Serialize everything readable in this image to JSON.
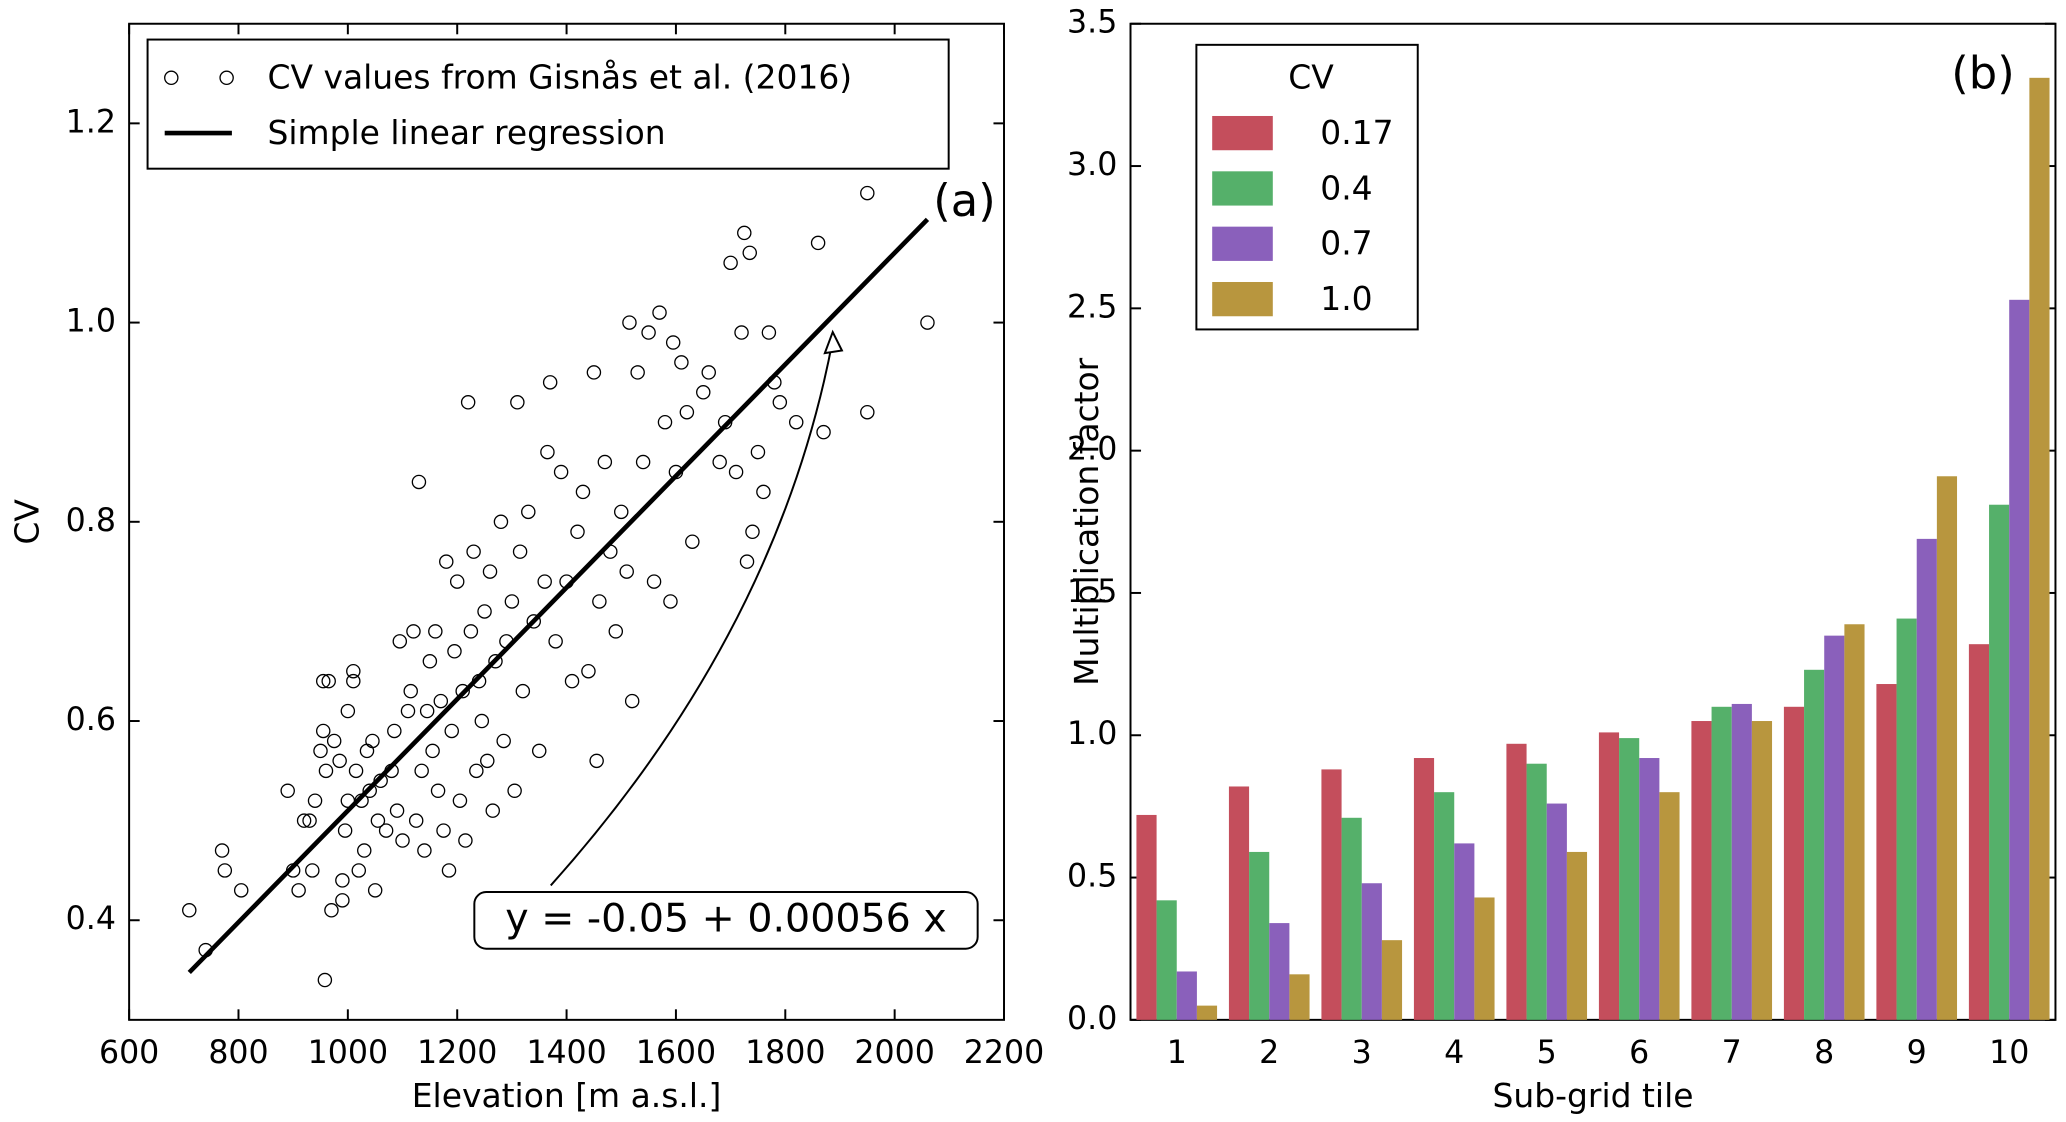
{
  "chart_data": [
    {
      "type": "scatter",
      "panel_label": "(a)",
      "annotation": "y = -0.05 + 0.00056 x",
      "x_label": "Elevation [m a.s.l.]",
      "y_label": "CV",
      "xlim": [
        600,
        2200
      ],
      "xticks": [
        600,
        800,
        1000,
        1200,
        1400,
        1600,
        1800,
        2000,
        2200
      ],
      "ylim": [
        0.3,
        1.3
      ],
      "yticks": [
        0.4,
        0.6,
        0.8,
        {
          "value": 1.0,
          "label": "1.0"
        },
        1.2
      ],
      "series": [
        {
          "name": "CV values from Gisnås et al. (2016)",
          "kind": "scatter",
          "color": "#000000",
          "x": [
            710,
            740,
            770,
            775,
            805,
            890,
            900,
            910,
            920,
            930,
            935,
            940,
            950,
            955,
            955,
            958,
            960,
            965,
            970,
            975,
            985,
            990,
            990,
            995,
            1000,
            1000,
            1010,
            1010,
            1015,
            1020,
            1025,
            1030,
            1035,
            1040,
            1045,
            1050,
            1055,
            1060,
            1070,
            1080,
            1085,
            1090,
            1095,
            1100,
            1110,
            1115,
            1120,
            1125,
            1130,
            1135,
            1140,
            1145,
            1150,
            1155,
            1160,
            1165,
            1170,
            1175,
            1180,
            1185,
            1190,
            1195,
            1200,
            1205,
            1210,
            1215,
            1220,
            1225,
            1230,
            1235,
            1240,
            1245,
            1250,
            1255,
            1260,
            1265,
            1270,
            1280,
            1285,
            1290,
            1300,
            1305,
            1310,
            1315,
            1320,
            1330,
            1340,
            1350,
            1360,
            1365,
            1370,
            1380,
            1390,
            1400,
            1410,
            1420,
            1430,
            1440,
            1450,
            1455,
            1460,
            1470,
            1480,
            1490,
            1500,
            1510,
            1515,
            1520,
            1530,
            1540,
            1550,
            1560,
            1570,
            1580,
            1590,
            1595,
            1600,
            1610,
            1620,
            1630,
            1650,
            1660,
            1680,
            1690,
            1700,
            1710,
            1720,
            1725,
            1730,
            1735,
            1740,
            1750,
            1760,
            1770,
            1780,
            1790,
            1820,
            1860,
            1870,
            1950,
            1950,
            2060
          ],
          "values": [
            0.41,
            0.37,
            0.47,
            0.45,
            0.43,
            0.53,
            0.45,
            0.43,
            0.5,
            0.5,
            0.45,
            0.52,
            0.57,
            0.59,
            0.64,
            0.34,
            0.55,
            0.64,
            0.41,
            0.58,
            0.56,
            0.42,
            0.44,
            0.49,
            0.52,
            0.61,
            0.65,
            0.64,
            0.55,
            0.45,
            0.52,
            0.47,
            0.57,
            0.53,
            0.58,
            0.43,
            0.5,
            0.54,
            0.49,
            0.55,
            0.59,
            0.51,
            0.68,
            0.48,
            0.61,
            0.63,
            0.69,
            0.5,
            0.84,
            0.55,
            0.47,
            0.61,
            0.66,
            0.57,
            0.69,
            0.53,
            0.62,
            0.49,
            0.76,
            0.45,
            0.59,
            0.67,
            0.74,
            0.52,
            0.63,
            0.48,
            0.92,
            0.69,
            0.77,
            0.55,
            0.64,
            0.6,
            0.71,
            0.56,
            0.75,
            0.51,
            0.66,
            0.8,
            0.58,
            0.68,
            0.72,
            0.53,
            0.92,
            0.77,
            0.63,
            0.81,
            0.7,
            0.57,
            0.74,
            0.87,
            0.94,
            0.68,
            0.85,
            0.74,
            0.64,
            0.79,
            0.83,
            0.65,
            0.95,
            0.56,
            0.72,
            0.86,
            0.77,
            0.69,
            0.81,
            0.75,
            1.0,
            0.62,
            0.95,
            0.86,
            0.99,
            0.74,
            1.01,
            0.9,
            0.72,
            0.98,
            0.85,
            0.96,
            0.91,
            0.78,
            0.93,
            0.95,
            0.86,
            0.9,
            1.06,
            0.85,
            0.99,
            1.09,
            0.76,
            1.07,
            0.79,
            0.87,
            0.83,
            0.99,
            0.94,
            0.92,
            0.9,
            1.08,
            0.89,
            1.13,
            0.91,
            1.0
          ]
        },
        {
          "name": "Simple linear regression",
          "kind": "line",
          "color": "#000000",
          "x": [
            710,
            2060
          ],
          "values": [
            0.3476,
            1.1036
          ]
        }
      ]
    },
    {
      "type": "bar",
      "panel_label": "(b)",
      "x_label": "Sub-grid tile",
      "y_label": "Multiplication factor",
      "legend_title": "CV",
      "categories": [
        "1",
        "2",
        "3",
        "4",
        "5",
        "6",
        "7",
        "8",
        "9",
        "10"
      ],
      "ylim": [
        0,
        3.5
      ],
      "yticks": [
        {
          "value": 0,
          "label": "0.0"
        },
        0.5,
        {
          "value": 1,
          "label": "1.0"
        },
        1.5,
        {
          "value": 2,
          "label": "2.0"
        },
        2.5,
        {
          "value": 3,
          "label": "3.0"
        },
        3.5
      ],
      "series": [
        {
          "name": "0.17",
          "color": "#c44e5c",
          "values": [
            0.72,
            0.82,
            0.88,
            0.92,
            0.97,
            1.01,
            1.05,
            1.1,
            1.18,
            1.32
          ]
        },
        {
          "name": "0.4",
          "color": "#55b06a",
          "values": [
            0.42,
            0.59,
            0.71,
            0.8,
            0.9,
            0.99,
            1.1,
            1.23,
            1.41,
            1.81
          ]
        },
        {
          "name": "0.7",
          "color": "#8a60bb",
          "values": [
            0.17,
            0.34,
            0.48,
            0.62,
            0.76,
            0.92,
            1.11,
            1.35,
            1.69,
            2.53
          ]
        },
        {
          "name": "1.0",
          "color": "#b8963e",
          "values": [
            0.05,
            0.16,
            0.28,
            0.43,
            0.59,
            0.8,
            1.05,
            1.39,
            1.91,
            3.31
          ]
        }
      ]
    }
  ]
}
